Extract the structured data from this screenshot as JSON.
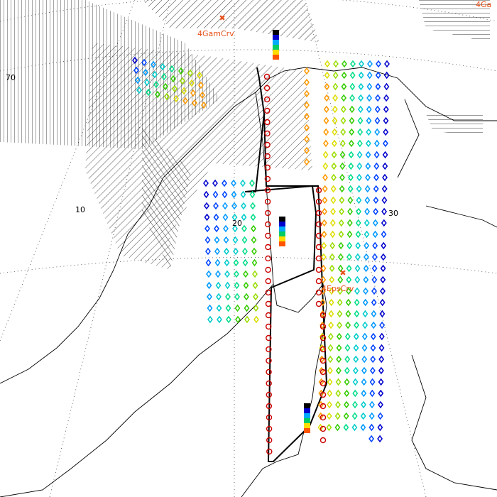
{
  "grid_labels": {
    "lat_70": "70",
    "lon_10": "10",
    "lon_20": "20",
    "lon_30": "30"
  },
  "markers": [
    {
      "label": "4GamCrv"
    },
    {
      "label": "4EpsCrv"
    },
    {
      "label": "4Ga"
    }
  ]
}
